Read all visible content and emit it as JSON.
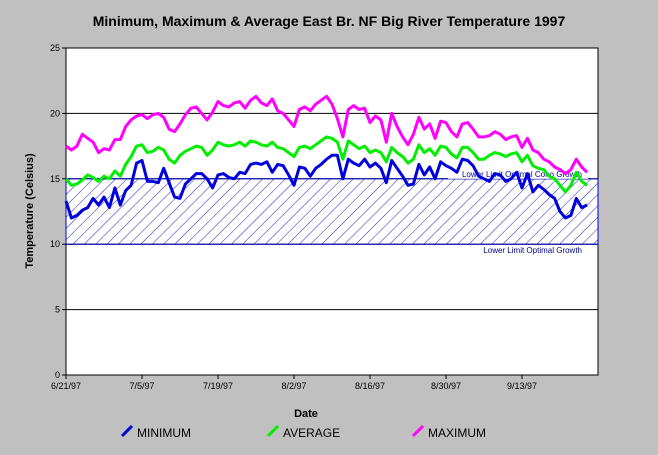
{
  "chart_data": {
    "type": "line",
    "title": "Minimum, Maximum & Average East Br. NF Big River Temperature 1997",
    "xlabel": "Date",
    "ylabel": "Temperature (Celsius)",
    "ylim": [
      0,
      25
    ],
    "yticks": [
      0,
      5,
      10,
      15,
      20,
      25
    ],
    "xlim": [
      0,
      98
    ],
    "xticks": [
      {
        "pos": 0,
        "label": "6/21/97"
      },
      {
        "pos": 14,
        "label": "7/5/97"
      },
      {
        "pos": 28,
        "label": "7/19/97"
      },
      {
        "pos": 42,
        "label": "8/2/97"
      },
      {
        "pos": 56,
        "label": "8/16/97"
      },
      {
        "pos": 70,
        "label": "8/30/97"
      },
      {
        "pos": 84,
        "label": "9/13/97"
      }
    ],
    "grid": "horizontal",
    "band": {
      "low": 10,
      "high": 15,
      "color": "#0000cc"
    },
    "annotations": [
      {
        "text": "Lower Limit Optimal Coho Growth",
        "y": 15
      },
      {
        "text": "Lower Limit Optimal Growth",
        "y": 10
      }
    ],
    "series": [
      {
        "name": "MINIMUM",
        "color": "#0000dd",
        "values": [
          13.3,
          12.0,
          12.2,
          12.6,
          12.8,
          13.5,
          13.0,
          13.6,
          12.8,
          14.3,
          13.0,
          14.1,
          14.5,
          16.2,
          16.4,
          14.8,
          14.8,
          14.7,
          15.8,
          14.7,
          13.6,
          13.5,
          14.6,
          15.0,
          15.4,
          15.4,
          15.0,
          14.3,
          15.3,
          15.4,
          15.1,
          15.0,
          15.5,
          15.4,
          16.1,
          16.2,
          16.1,
          16.3,
          15.5,
          16.1,
          16.0,
          15.3,
          14.5,
          15.9,
          15.8,
          15.2,
          15.8,
          16.1,
          16.5,
          16.8,
          16.8,
          15.0,
          16.5,
          16.2,
          16.0,
          16.5,
          15.9,
          16.2,
          15.8,
          14.7,
          16.4,
          15.8,
          15.2,
          14.5,
          14.6,
          16.1,
          15.3,
          15.9,
          15.0,
          16.3,
          16.0,
          15.8,
          15.5,
          16.5,
          16.4,
          16.0,
          15.2,
          15.0,
          14.8,
          15.4,
          15.3,
          14.8,
          15.0,
          15.5,
          14.3,
          15.4,
          14.0,
          14.5,
          14.2,
          13.8,
          13.5,
          12.5,
          12.0,
          12.2,
          13.5,
          12.8,
          13.0
        ]
      },
      {
        "name": "AVERAGE",
        "color": "#00ee00",
        "values": [
          15.0,
          14.5,
          14.6,
          14.9,
          15.3,
          15.1,
          14.8,
          15.2,
          15.0,
          15.6,
          15.2,
          16.1,
          16.7,
          17.5,
          17.6,
          17.0,
          17.1,
          17.4,
          17.2,
          16.5,
          16.2,
          16.8,
          17.1,
          17.3,
          17.5,
          17.4,
          16.8,
          17.2,
          17.8,
          17.6,
          17.5,
          17.6,
          17.8,
          17.5,
          17.9,
          17.8,
          17.6,
          17.5,
          17.8,
          17.4,
          17.3,
          17.0,
          16.7,
          17.4,
          17.5,
          17.3,
          17.6,
          17.9,
          18.2,
          18.1,
          17.8,
          16.5,
          17.9,
          17.6,
          17.3,
          17.5,
          17.0,
          17.2,
          17.0,
          16.3,
          17.4,
          17.0,
          16.7,
          16.2,
          16.5,
          17.6,
          17.0,
          17.3,
          16.8,
          17.5,
          17.4,
          16.9,
          16.6,
          17.4,
          17.4,
          17.0,
          16.5,
          16.5,
          16.8,
          17.0,
          16.9,
          16.7,
          16.9,
          17.0,
          16.3,
          16.8,
          16.0,
          15.8,
          15.7,
          15.2,
          15.0,
          14.5,
          14.0,
          14.5,
          15.5,
          14.8,
          14.5
        ]
      },
      {
        "name": "MAXIMUM",
        "color": "#ff00ff",
        "values": [
          17.5,
          17.2,
          17.5,
          18.4,
          18.1,
          17.8,
          17.0,
          17.3,
          17.2,
          18.0,
          18.0,
          19.0,
          19.5,
          19.8,
          19.9,
          19.6,
          19.9,
          20.0,
          19.7,
          18.8,
          18.6,
          19.2,
          19.9,
          20.4,
          20.5,
          20.0,
          19.5,
          20.1,
          20.9,
          20.6,
          20.5,
          20.8,
          20.9,
          20.4,
          21.0,
          21.3,
          20.8,
          20.6,
          21.1,
          20.2,
          20.0,
          19.5,
          19.0,
          20.3,
          20.5,
          20.2,
          20.7,
          21.0,
          21.3,
          20.7,
          19.6,
          18.2,
          20.3,
          20.6,
          20.3,
          20.4,
          19.3,
          19.8,
          19.5,
          17.8,
          20.0,
          19.0,
          18.2,
          17.6,
          18.4,
          19.7,
          18.8,
          19.2,
          18.1,
          19.4,
          19.3,
          18.6,
          18.2,
          19.2,
          19.3,
          18.8,
          18.2,
          18.2,
          18.3,
          18.6,
          18.4,
          18.0,
          18.2,
          18.3,
          17.4,
          18.1,
          17.2,
          17.0,
          16.5,
          16.3,
          15.9,
          15.7,
          15.4,
          15.7,
          16.5,
          15.9,
          15.5
        ]
      }
    ],
    "legend": {
      "position": "bottom"
    }
  }
}
